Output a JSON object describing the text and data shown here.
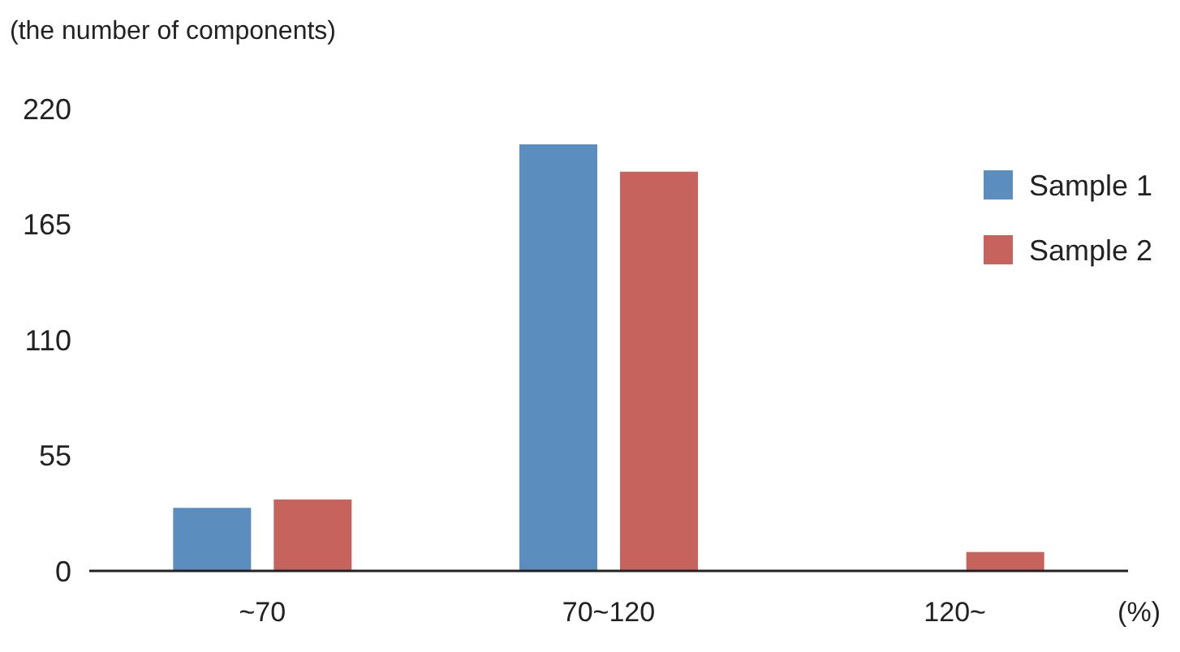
{
  "chart_data": {
    "type": "bar",
    "ylabel": "(the number of components)",
    "xlabel": "(%)",
    "categories": [
      "~70",
      "70~120",
      "120~"
    ],
    "series": [
      {
        "name": "Sample 1",
        "color": "#5b8dbf",
        "values": [
          30,
          203,
          0
        ]
      },
      {
        "name": "Sample 2",
        "color": "#c5635c",
        "values": [
          34,
          190,
          9
        ]
      }
    ],
    "ylim": [
      0,
      220
    ],
    "yticks": [
      0,
      55,
      110,
      165,
      220
    ],
    "grid": false,
    "legend": "top right"
  }
}
